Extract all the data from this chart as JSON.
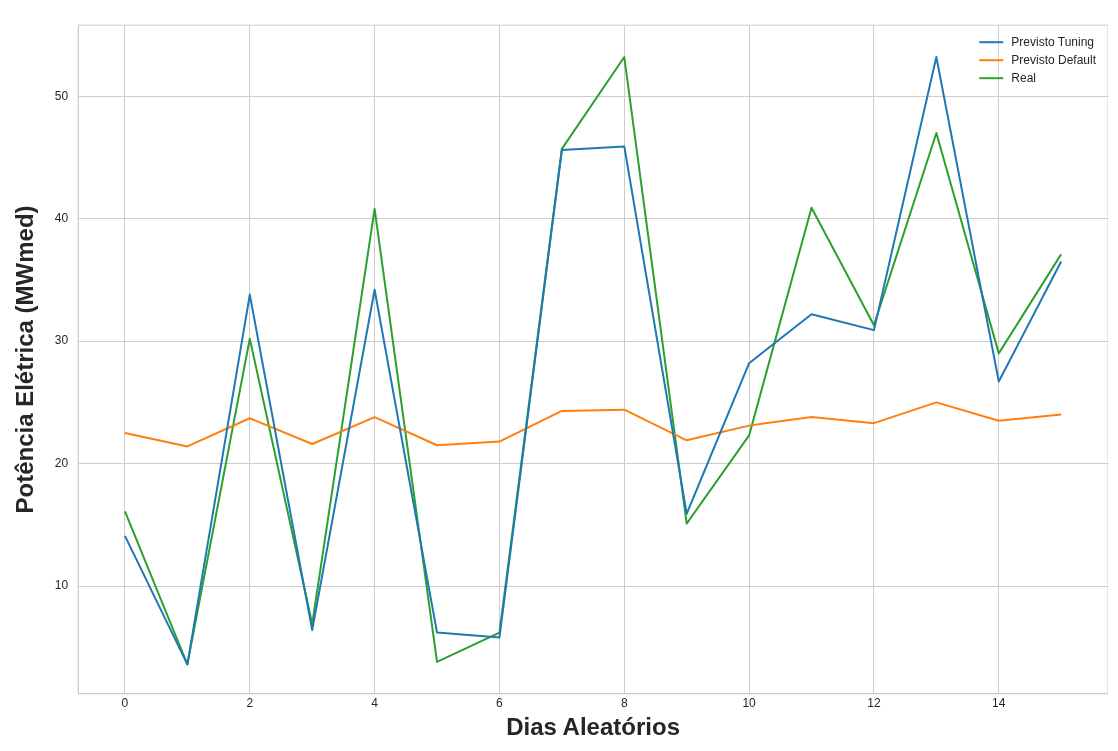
{
  "chart_data": {
    "type": "line",
    "xlabel": "Dias Aleatórios",
    "ylabel": "Potência Elétrica (MWmed)",
    "x": [
      0,
      1,
      2,
      3,
      4,
      5,
      6,
      7,
      8,
      9,
      10,
      11,
      12,
      13,
      14,
      15
    ],
    "series": [
      {
        "name": "Previsto Tuning",
        "color": "#1f77b4",
        "values": [
          14.1,
          3.6,
          33.8,
          6.4,
          34.2,
          6.2,
          5.8,
          45.6,
          45.9,
          15.9,
          28.2,
          32.2,
          30.9,
          53.2,
          26.7,
          36.5
        ]
      },
      {
        "name": "Previsto Default",
        "color": "#ff7f0e",
        "values": [
          22.5,
          21.4,
          23.7,
          21.6,
          23.8,
          21.5,
          21.8,
          24.3,
          24.4,
          21.9,
          23.1,
          23.8,
          23.3,
          25.0,
          23.5,
          24.0
        ]
      },
      {
        "name": "Real",
        "color": "#2ca02c",
        "values": [
          16.1,
          3.6,
          30.2,
          6.9,
          40.8,
          3.8,
          6.2,
          45.7,
          53.2,
          15.1,
          22.3,
          40.9,
          31.3,
          47.0,
          29.0,
          37.1
        ]
      }
    ],
    "xlim": [
      -0.75,
      15.75
    ],
    "ylim": [
      1.2,
      55.8
    ],
    "xticks": [
      0,
      2,
      4,
      6,
      8,
      10,
      12,
      14
    ],
    "yticks": [
      10,
      20,
      30,
      40,
      50
    ],
    "grid": true,
    "legend": "top right",
    "marker": "none",
    "line_style": "solid"
  }
}
